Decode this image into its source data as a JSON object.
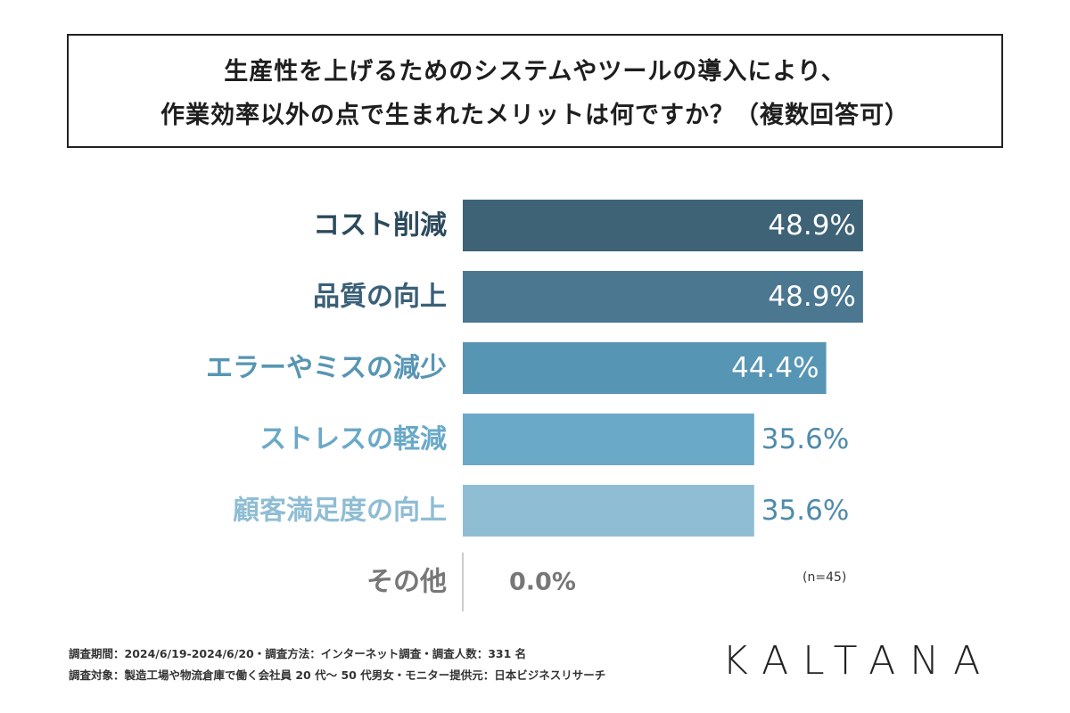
{
  "title": {
    "line1": "生産性を上げるためのシステムやツールの導入により、",
    "line2": "作業効率以外の点で生まれたメリットは何ですか？（複数回答可）"
  },
  "chart_data": {
    "type": "bar",
    "orientation": "horizontal",
    "categories": [
      "コスト削減",
      "品質の向上",
      "エラーやミスの減少",
      "ストレスの軽減",
      "顧客満足度の向上",
      "その他"
    ],
    "values": [
      48.9,
      48.9,
      44.4,
      35.6,
      35.6,
      0.0
    ],
    "value_labels": [
      "48.9%",
      "48.9%",
      "44.4%",
      "35.6%",
      "35.6%",
      "0.0%"
    ],
    "bar_colors": [
      "#3e6276",
      "#4b7790",
      "#5795b4",
      "#6aa9c8",
      "#8fbdd3",
      "#e6e6e6"
    ],
    "label_colors": [
      "#2c4a5c",
      "#3a6079",
      "#5795b4",
      "#6aa9c8",
      "#8fbdd3",
      "#777777"
    ],
    "value_label_colors": [
      "#ffffff",
      "#ffffff",
      "#ffffff",
      "#4f8bab",
      "#4f8bab",
      "#777777"
    ],
    "xlim": [
      0,
      50
    ],
    "grid": false,
    "note": "(n=45)"
  },
  "footer": {
    "line1": "調査期間：2024/6/19-2024/6/20・調査方法：インターネット調査・調査人数：331 名",
    "line2": "調査対象：製造工場や物流倉庫で働く会社員 20 代〜 50 代男女・モニター提供元：日本ビジネスリサーチ"
  },
  "logo": {
    "text": "KALTANA"
  }
}
